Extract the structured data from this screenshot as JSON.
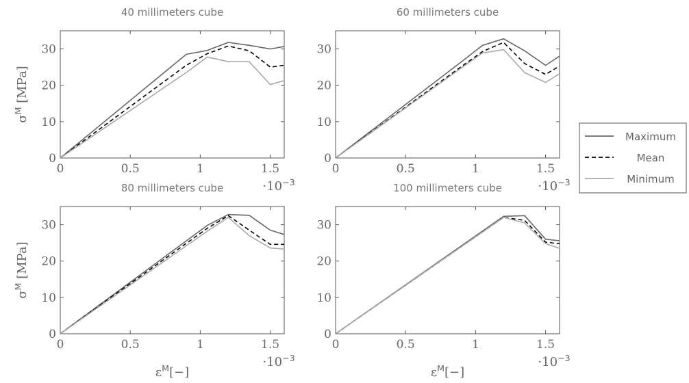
{
  "colors": {
    "Maximum": "#666666",
    "Mean": "#000000",
    "Minimum": "#aaaaaa"
  },
  "legend": {
    "placement": "right",
    "items": [
      "Maximum",
      "Mean",
      "Minimum"
    ]
  },
  "chart_data": [
    {
      "type": "line",
      "title": "40 millimeters cube",
      "ylabel": "σ^M [MPa]",
      "xlabel": "",
      "x_scale_label": "·10^−3",
      "xlim": [
        0,
        1.6
      ],
      "ylim": [
        0,
        35
      ],
      "xticks": [
        "0",
        "0.5",
        "1",
        "1.5"
      ],
      "yticks": [
        "0",
        "10",
        "20",
        "30"
      ],
      "series": [
        {
          "name": "Maximum",
          "x": [
            0,
            0.9,
            1.05,
            1.2,
            1.35,
            1.5,
            1.6
          ],
          "y": [
            0,
            28.5,
            29.6,
            31.8,
            31.0,
            30.0,
            30.7
          ]
        },
        {
          "name": "Mean",
          "x": [
            0,
            0.9,
            1.05,
            1.2,
            1.35,
            1.5,
            1.6
          ],
          "y": [
            0,
            25.5,
            28.7,
            30.8,
            29.5,
            25.0,
            25.5
          ]
        },
        {
          "name": "Minimum",
          "x": [
            0,
            0.9,
            1.05,
            1.2,
            1.35,
            1.5,
            1.6
          ],
          "y": [
            0,
            23.5,
            27.8,
            26.5,
            26.5,
            20.2,
            21.3
          ]
        }
      ]
    },
    {
      "type": "line",
      "title": "60 millimeters cube",
      "ylabel": "",
      "xlabel": "",
      "x_scale_label": "·10^−3",
      "xlim": [
        0,
        1.6
      ],
      "ylim": [
        0,
        35
      ],
      "xticks": [
        "0",
        "0.5",
        "1",
        "1.5"
      ],
      "yticks": [
        "0",
        "10",
        "20",
        "30"
      ],
      "series": [
        {
          "name": "Maximum",
          "x": [
            0,
            0.9,
            1.05,
            1.2,
            1.35,
            1.5,
            1.6
          ],
          "y": [
            0,
            26.5,
            31.0,
            32.8,
            29.5,
            25.5,
            28.0
          ]
        },
        {
          "name": "Mean",
          "x": [
            0,
            0.9,
            1.05,
            1.2,
            1.35,
            1.5,
            1.6
          ],
          "y": [
            0,
            25.2,
            29.3,
            31.8,
            26.0,
            23.0,
            25.3
          ]
        },
        {
          "name": "Minimum",
          "x": [
            0,
            0.9,
            1.05,
            1.2,
            1.35,
            1.5,
            1.6
          ],
          "y": [
            0,
            24.8,
            28.9,
            29.8,
            23.5,
            20.8,
            23.2
          ]
        }
      ]
    },
    {
      "type": "line",
      "title": "80 millimeters cube",
      "ylabel": "σ^M [MPa]",
      "xlabel": "ε^M[−]",
      "x_scale_label": "·10^−3",
      "xlim": [
        0,
        1.6
      ],
      "ylim": [
        0,
        35
      ],
      "xticks": [
        "0",
        "0.5",
        "1",
        "1.5"
      ],
      "yticks": [
        "0",
        "10",
        "20",
        "30"
      ],
      "series": [
        {
          "name": "Maximum",
          "x": [
            0,
            1.05,
            1.2,
            1.35,
            1.5,
            1.6
          ],
          "y": [
            0,
            29.8,
            32.8,
            32.6,
            28.5,
            27.3
          ]
        },
        {
          "name": "Mean",
          "x": [
            0,
            1.05,
            1.2,
            1.35,
            1.5,
            1.6
          ],
          "y": [
            0,
            29.0,
            32.5,
            28.5,
            24.6,
            24.6
          ]
        },
        {
          "name": "Minimum",
          "x": [
            0,
            1.05,
            1.2,
            1.35,
            1.5,
            1.6
          ],
          "y": [
            0,
            28.2,
            32.0,
            27.0,
            23.6,
            23.3
          ]
        }
      ]
    },
    {
      "type": "line",
      "title": "100 millimeters cube",
      "ylabel": "",
      "xlabel": "ε^M[−]",
      "x_scale_label": "·10^−3",
      "xlim": [
        0,
        1.6
      ],
      "ylim": [
        0,
        35
      ],
      "xticks": [
        "0",
        "0.5",
        "1",
        "1.5"
      ],
      "yticks": [
        "0",
        "10",
        "20",
        "30"
      ],
      "series": [
        {
          "name": "Maximum",
          "x": [
            0,
            1.2,
            1.35,
            1.5,
            1.6
          ],
          "y": [
            0,
            32.3,
            32.5,
            26.0,
            25.6
          ]
        },
        {
          "name": "Mean",
          "x": [
            0,
            1.2,
            1.35,
            1.5,
            1.6
          ],
          "y": [
            0,
            32.0,
            31.2,
            25.2,
            24.8
          ]
        },
        {
          "name": "Minimum",
          "x": [
            0,
            1.2,
            1.35,
            1.5,
            1.6
          ],
          "y": [
            0,
            32.0,
            30.5,
            24.8,
            23.5
          ]
        }
      ]
    }
  ]
}
